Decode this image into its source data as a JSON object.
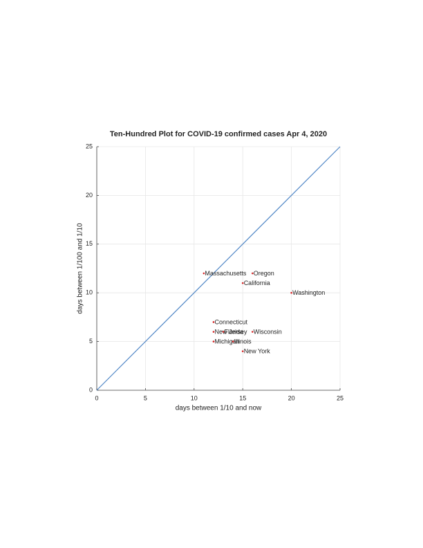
{
  "chart_data": {
    "type": "scatter",
    "title": "Ten-Hundred Plot for COVID-19 confirmed cases Apr 4, 2020",
    "x_label": "days between 1/10 and now",
    "y_label": "days between 1/100 and 1/10",
    "xlim": [
      0,
      25
    ],
    "ylim": [
      0,
      25
    ],
    "xticks": [
      0,
      5,
      10,
      15,
      20,
      25
    ],
    "yticks": [
      0,
      5,
      10,
      15,
      20,
      25
    ],
    "grid": true,
    "series": [
      {
        "type": "line",
        "color": "#4f86c6",
        "x": [
          0,
          25
        ],
        "values": [
          0,
          25
        ]
      },
      {
        "type": "scatter",
        "color": "#d62728",
        "labels": [
          "Massachusetts",
          "Oregon",
          "California",
          "Washington",
          "Connecticut",
          "New Jersey",
          "Florida",
          "Wisconsin",
          "Michigan",
          "Illinois",
          "New York"
        ],
        "x": [
          11,
          16,
          15,
          20,
          12,
          12,
          13,
          16,
          12,
          14,
          15
        ],
        "values": [
          12,
          12,
          11,
          10,
          7,
          6,
          6,
          6,
          5,
          5,
          4
        ]
      }
    ]
  }
}
